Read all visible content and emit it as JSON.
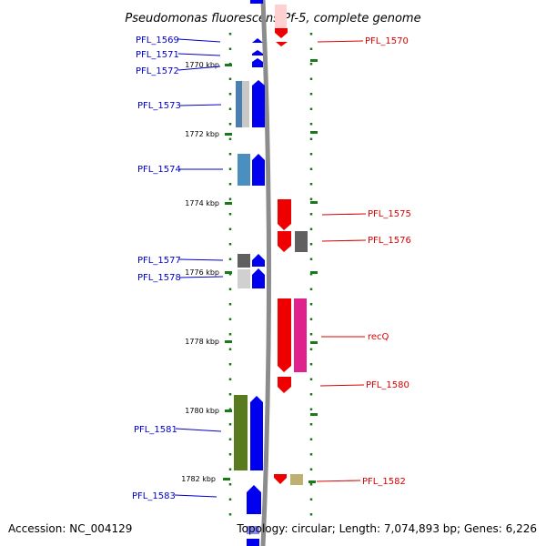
{
  "title": "Pseudomonas fluorescens Pf-5, complete genome",
  "footer": {
    "accession": "Accession: NC_004129",
    "topology": "Topology: circular; Length: 7,074,893 bp; Genes: 6,226"
  },
  "colors": {
    "forward_label": "#0000cc",
    "reverse_label": "#dd0000",
    "backbone": "#8c8c8c",
    "tick": "#1a7a1a"
  },
  "scale_ticks": [
    {
      "label": "1770 kbp"
    },
    {
      "label": "1772 kbp"
    },
    {
      "label": "1774 kbp"
    },
    {
      "label": "1776 kbp"
    },
    {
      "label": "1778 kbp"
    },
    {
      "label": "1780 kbp"
    },
    {
      "label": "1782 kbp"
    }
  ],
  "forward_genes": [
    {
      "label": "PFL_1569"
    },
    {
      "label": "PFL_1571"
    },
    {
      "label": "PFL_1572"
    },
    {
      "label": "PFL_1573"
    },
    {
      "label": "PFL_1574"
    },
    {
      "label": "PFL_1577"
    },
    {
      "label": "PFL_1578"
    },
    {
      "label": "PFL_1581"
    },
    {
      "label": "PFL_1583"
    }
  ],
  "reverse_genes": [
    {
      "label": "PFL_1570"
    },
    {
      "label": "PFL_1575"
    },
    {
      "label": "PFL_1576"
    },
    {
      "label": "recQ"
    },
    {
      "label": "PFL_1580"
    },
    {
      "label": "PFL_1582"
    }
  ]
}
